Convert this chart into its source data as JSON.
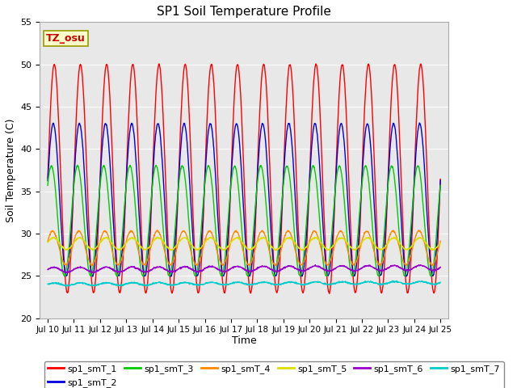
{
  "title": "SP1 Soil Temperature Profile",
  "xlabel": "Time",
  "ylabel": "Soil Temperature (C)",
  "ylim": [
    20,
    55
  ],
  "annotation_text": "TZ_osu",
  "annotation_bg": "#ffffcc",
  "annotation_border": "#999900",
  "background_color": "#e8e8e8",
  "series": [
    {
      "name": "sp1_smT_1",
      "color": "#ff0000",
      "base": 36.5,
      "amp": 13.5,
      "phase": 0.0,
      "trend": 0.0
    },
    {
      "name": "sp1_smT_2",
      "color": "#0000dd",
      "base": 34.0,
      "amp": 9.0,
      "phase": 0.25,
      "trend": 0.0
    },
    {
      "name": "sp1_smT_3",
      "color": "#00cc00",
      "base": 31.5,
      "amp": 6.5,
      "phase": 0.7,
      "trend": 0.0
    },
    {
      "name": "sp1_smT_4",
      "color": "#ff8800",
      "base": 28.3,
      "amp": 2.0,
      "phase": 0.4,
      "trend": 0.0
    },
    {
      "name": "sp1_smT_5",
      "color": "#dddd00",
      "base": 28.8,
      "amp": 0.7,
      "phase": 0.2,
      "trend": 0.0
    },
    {
      "name": "sp1_smT_6",
      "color": "#9900cc",
      "base": 25.7,
      "amp": 0.3,
      "phase": 0.1,
      "trend": 0.017
    },
    {
      "name": "sp1_smT_7",
      "color": "#00cccc",
      "base": 24.0,
      "amp": 0.15,
      "phase": 0.0,
      "trend": 0.013
    }
  ],
  "tick_days": [
    10,
    11,
    12,
    13,
    14,
    15,
    16,
    17,
    18,
    19,
    20,
    21,
    22,
    23,
    24,
    25
  ],
  "yticks": [
    20,
    25,
    30,
    35,
    40,
    45,
    50,
    55
  ]
}
